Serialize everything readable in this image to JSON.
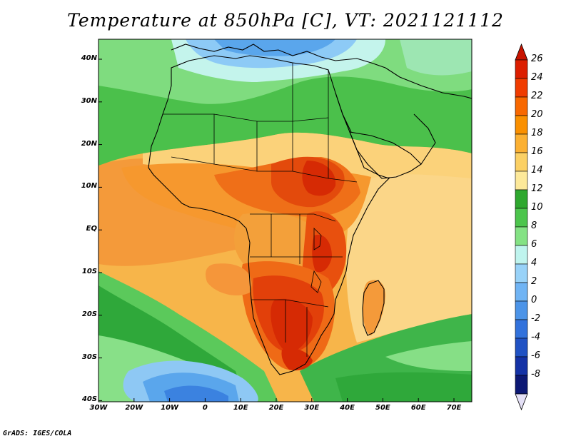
{
  "title": "Temperature at 850hPa [C], VT: 2021121112",
  "credit": "GrADS: IGES/COLA",
  "lat_labels": [
    "40N",
    "30N",
    "20N",
    "10N",
    "EQ",
    "10S",
    "20S",
    "30S",
    "40S"
  ],
  "lon_labels": [
    "30W",
    "20W",
    "10W",
    "0",
    "10E",
    "20E",
    "30E",
    "40E",
    "50E",
    "60E",
    "70E"
  ],
  "colorbar": {
    "labels": [
      "26",
      "24",
      "22",
      "20",
      "18",
      "16",
      "14",
      "12",
      "10",
      "8",
      "6",
      "4",
      "2",
      "0",
      "-2",
      "-4",
      "-6",
      "-8"
    ],
    "colors": [
      "#dc1e00",
      "#f03c00",
      "#f86800",
      "#fa9000",
      "#fbb032",
      "#fbd064",
      "#fde99a",
      "#2ea82e",
      "#4cc54c",
      "#84e284",
      "#bff4ee",
      "#98d2f8",
      "#70b4f4",
      "#4c94e8",
      "#3272dc",
      "#2052c4",
      "#1432a6",
      "#0c1874"
    ]
  },
  "chart_data": {
    "type": "heatmap",
    "title": "Temperature at 850hPa [C], VT: 2021121112",
    "variable": "Temperature at 850hPa",
    "units": "C",
    "valid_time": "2021121112",
    "x_range_deg": [
      -30,
      75
    ],
    "y_range_deg": [
      -40,
      45
    ],
    "x_ticks": [
      "30W",
      "20W",
      "10W",
      "0",
      "10E",
      "20E",
      "30E",
      "40E",
      "50E",
      "60E",
      "70E"
    ],
    "y_ticks": [
      "40N",
      "30N",
      "20N",
      "10N",
      "EQ",
      "10S",
      "20S",
      "30S",
      "40S"
    ],
    "colorbar_range": [
      -8,
      26
    ],
    "colorbar_step": 2
  }
}
